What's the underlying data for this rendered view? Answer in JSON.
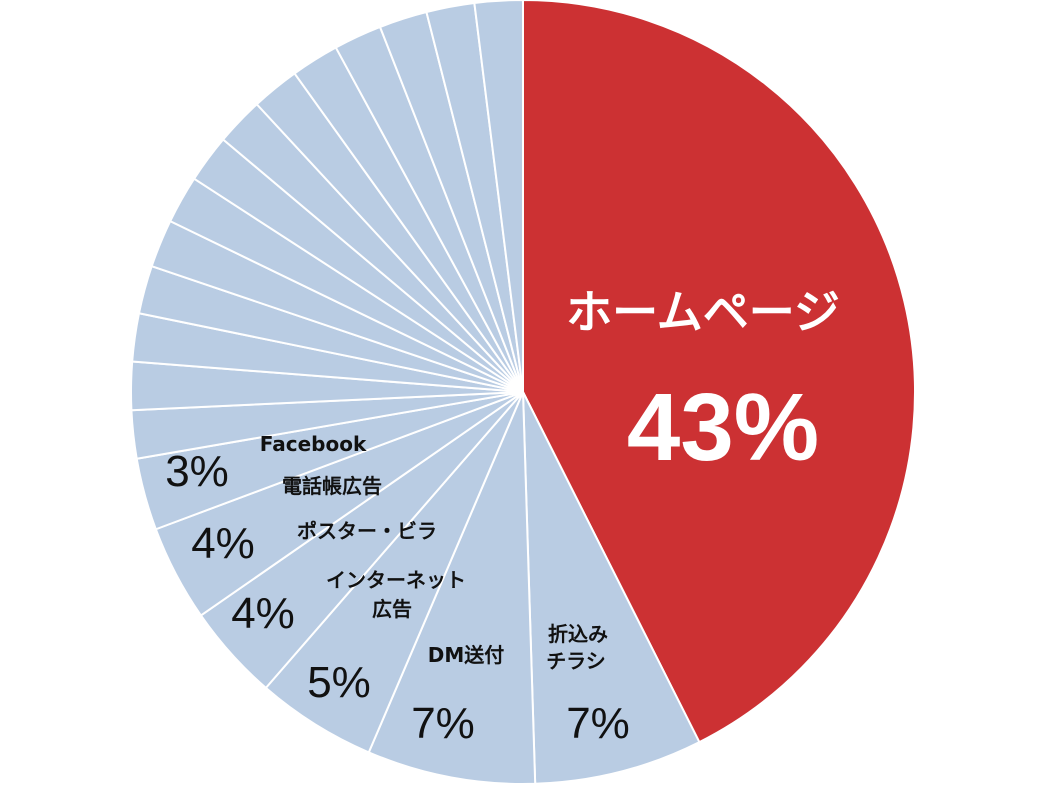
{
  "chart_data": {
    "type": "pie",
    "title": "",
    "colors": {
      "highlight": "#cc3133",
      "other": "#b9cce3",
      "border": "#ffffff"
    },
    "slices": [
      {
        "label": "ホームページ",
        "value": 43,
        "value_label": "43%",
        "highlight": true
      },
      {
        "label": "折込みチラシ",
        "value": 7,
        "value_label": "7%"
      },
      {
        "label": "DM送付",
        "value": 7,
        "value_label": "7%"
      },
      {
        "label": "インターネット広告",
        "value": 5,
        "value_label": "5%"
      },
      {
        "label": "ポスター・ビラ",
        "value": 4,
        "value_label": "4%"
      },
      {
        "label": "電話帳広告",
        "value": 4,
        "value_label": "4%"
      },
      {
        "label": "Facebook",
        "value": 3,
        "value_label": "3%"
      },
      {
        "label": "",
        "value": 2
      },
      {
        "label": "",
        "value": 2
      },
      {
        "label": "",
        "value": 2
      },
      {
        "label": "",
        "value": 2
      },
      {
        "label": "",
        "value": 2
      },
      {
        "label": "",
        "value": 2
      },
      {
        "label": "",
        "value": 2
      },
      {
        "label": "",
        "value": 2
      },
      {
        "label": "",
        "value": 2
      },
      {
        "label": "",
        "value": 2
      },
      {
        "label": "",
        "value": 2
      },
      {
        "label": "",
        "value": 2
      },
      {
        "label": "",
        "value": 2
      },
      {
        "label": "",
        "value": 2
      }
    ],
    "annotations": {
      "homepage_name": "ホームページ",
      "homepage_value": "43%",
      "orikomi_line1": "折込み",
      "orikomi_line2": "チラシ",
      "orikomi_value": "7%",
      "dm_name": "DM送付",
      "dm_value": "7%",
      "internet_line1": "インターネット",
      "internet_line2": "広告",
      "internet_value": "5%",
      "poster_name": "ポスター・ビラ",
      "poster_value": "4%",
      "phonebook_name": "電話帳広告",
      "phonebook_value": "4%",
      "facebook_name": "Facebook",
      "facebook_value": "3%"
    }
  }
}
